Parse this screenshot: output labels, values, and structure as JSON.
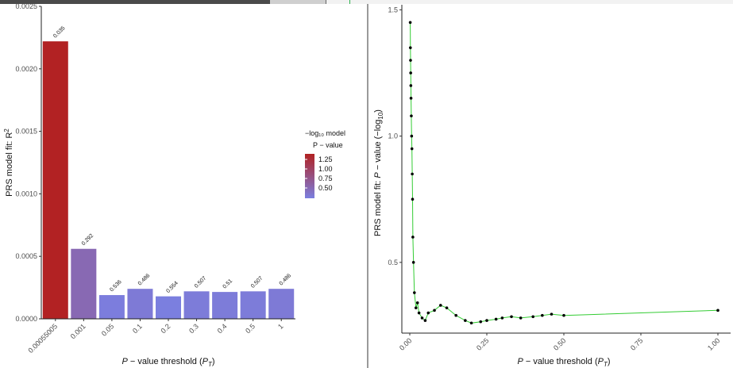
{
  "chart_data": [
    {
      "type": "bar",
      "xlabel": "P − value threshold (P_T)",
      "ylabel": "PRS model fit:  R²",
      "ylim": [
        0,
        0.0025
      ],
      "y_ticks": [
        "0.0000",
        "0.0005",
        "0.0010",
        "0.0015",
        "0.0020",
        "0.0025"
      ],
      "categories": [
        "0.00055005",
        "0.001",
        "0.05",
        "0.1",
        "0.2",
        "0.3",
        "0.4",
        "0.5",
        "1"
      ],
      "values": [
        0.00222,
        0.00056,
        0.00019,
        0.00024,
        0.00018,
        0.00022,
        0.000215,
        0.00022,
        0.00024
      ],
      "labels": [
        "0.035",
        "0.292",
        "0.536",
        "0.486",
        "0.554",
        "0.507",
        "0.51",
        "0.507",
        "0.486"
      ],
      "neglog10_p": [
        1.456,
        0.535,
        0.271,
        0.313,
        0.256,
        0.295,
        0.292,
        0.295,
        0.313
      ],
      "legend": {
        "title_line1": "−log₁₀ model",
        "title_line2": "P − value",
        "entries": [
          "1.25",
          "1.00",
          "0.75",
          "0.50"
        ],
        "color_high": "#b22222",
        "color_low": "#7b7fe0"
      }
    },
    {
      "type": "scatter",
      "xlabel": "P − value threshold (P_T)",
      "ylabel": "PRS model fit:  P − value (−log₁₀)",
      "xlim": [
        0,
        1
      ],
      "ylim": [
        0.22,
        1.52
      ],
      "x_ticks": [
        "0.00",
        "0.25",
        "0.50",
        "0.75",
        "1.00"
      ],
      "y_ticks": [
        "0.5",
        "1.0",
        "1.5"
      ],
      "line_color": "#33cc33",
      "point_color": "#000000",
      "points": [
        [
          0.0015,
          1.45
        ],
        [
          0.002,
          1.35
        ],
        [
          0.0025,
          1.3
        ],
        [
          0.003,
          1.25
        ],
        [
          0.0035,
          1.2
        ],
        [
          0.004,
          1.15
        ],
        [
          0.005,
          1.08
        ],
        [
          0.006,
          1.0
        ],
        [
          0.007,
          0.95
        ],
        [
          0.008,
          0.85
        ],
        [
          0.009,
          0.75
        ],
        [
          0.01,
          0.6
        ],
        [
          0.012,
          0.5
        ],
        [
          0.015,
          0.38
        ],
        [
          0.02,
          0.32
        ],
        [
          0.025,
          0.34
        ],
        [
          0.03,
          0.3
        ],
        [
          0.04,
          0.28
        ],
        [
          0.05,
          0.27
        ],
        [
          0.06,
          0.3
        ],
        [
          0.08,
          0.31
        ],
        [
          0.1,
          0.33
        ],
        [
          0.12,
          0.32
        ],
        [
          0.15,
          0.29
        ],
        [
          0.18,
          0.27
        ],
        [
          0.2,
          0.26
        ],
        [
          0.23,
          0.265
        ],
        [
          0.25,
          0.27
        ],
        [
          0.28,
          0.275
        ],
        [
          0.3,
          0.28
        ],
        [
          0.33,
          0.285
        ],
        [
          0.36,
          0.28
        ],
        [
          0.4,
          0.285
        ],
        [
          0.43,
          0.29
        ],
        [
          0.46,
          0.295
        ],
        [
          0.5,
          0.29
        ],
        [
          1.0,
          0.31
        ]
      ]
    }
  ]
}
